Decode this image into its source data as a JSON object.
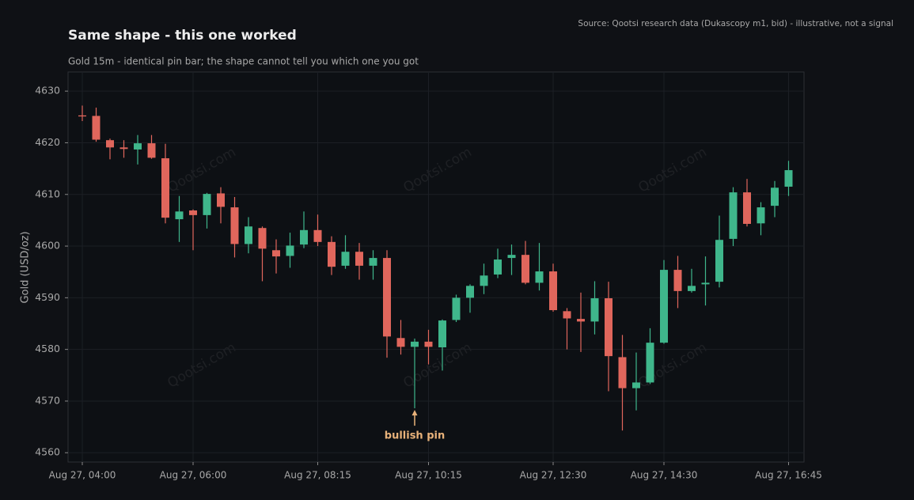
{
  "chart_data": {
    "type": "candlestick",
    "title": "Same shape - this one worked",
    "subtitle": "Gold 15m - identical pin bar; the shape cannot tell you which one you got",
    "source": "Source: Qootsi research data (Dukascopy m1, bid) - illustrative, not a signal",
    "watermark": "Qootsi.com",
    "y_label": "Gold (USD/oz)",
    "up_color": "#3fb68b",
    "down_color": "#e0665c",
    "grid": true,
    "x": [
      "Aug 27, 04:00",
      "Aug 27, 04:15",
      "Aug 27, 04:30",
      "Aug 27, 04:45",
      "Aug 27, 05:00",
      "Aug 27, 05:15",
      "Aug 27, 05:30",
      "Aug 27, 05:45",
      "Aug 27, 06:00",
      "Aug 27, 06:15",
      "Aug 27, 06:30",
      "Aug 27, 06:45",
      "Aug 27, 07:00",
      "Aug 27, 07:15",
      "Aug 27, 07:30",
      "Aug 27, 07:45",
      "Aug 27, 08:00",
      "Aug 27, 08:15",
      "Aug 27, 08:30",
      "Aug 27, 08:45",
      "Aug 27, 09:00",
      "Aug 27, 09:15",
      "Aug 27, 09:30",
      "Aug 27, 09:45",
      "Aug 27, 10:00",
      "Aug 27, 10:15",
      "Aug 27, 10:30",
      "Aug 27, 10:45",
      "Aug 27, 11:00",
      "Aug 27, 11:15",
      "Aug 27, 11:30",
      "Aug 27, 11:45",
      "Aug 27, 12:00",
      "Aug 27, 12:15",
      "Aug 27, 12:30",
      "Aug 27, 12:45",
      "Aug 27, 13:00",
      "Aug 27, 13:15",
      "Aug 27, 13:30",
      "Aug 27, 13:45",
      "Aug 27, 14:00",
      "Aug 27, 14:15",
      "Aug 27, 14:30",
      "Aug 27, 14:45",
      "Aug 27, 15:00",
      "Aug 27, 15:15",
      "Aug 27, 15:30",
      "Aug 27, 15:45",
      "Aug 27, 16:00",
      "Aug 27, 16:15",
      "Aug 27, 16:30",
      "Aug 27, 16:45"
    ],
    "open": [
      4625.3,
      4625.2,
      4620.5,
      4619.1,
      4618.7,
      4619.9,
      4617.0,
      4605.2,
      4606.9,
      4606.0,
      4610.2,
      4607.5,
      4600.4,
      4603.5,
      4599.2,
      4598.1,
      4600.3,
      4603.1,
      4600.8,
      4596.2,
      4598.9,
      4596.2,
      4597.7,
      4582.2,
      4580.5,
      4581.5,
      4580.4,
      4585.7,
      4590.0,
      4592.3,
      4594.5,
      4597.7,
      4598.3,
      4592.9,
      4595.1,
      4587.4,
      4585.9,
      4585.4,
      4589.9,
      4578.5,
      4572.5,
      4573.6,
      4581.3,
      4595.4,
      4591.3,
      4592.6,
      4593.1,
      4601.4,
      4610.4,
      4604.4,
      4607.8,
      4611.5
    ],
    "high": [
      4627.2,
      4626.8,
      4620.8,
      4620.5,
      4621.5,
      4621.5,
      4619.8,
      4609.7,
      4607.1,
      4610.3,
      4611.4,
      4609.5,
      4605.6,
      4603.8,
      4601.3,
      4602.6,
      4606.7,
      4606.1,
      4601.9,
      4602.1,
      4600.6,
      4599.2,
      4599.2,
      4585.7,
      4582.1,
      4583.8,
      4585.8,
      4590.6,
      4592.6,
      4596.6,
      4599.5,
      4600.3,
      4601.0,
      4600.6,
      4596.6,
      4588.0,
      4591.0,
      4593.2,
      4593.1,
      4582.8,
      4579.4,
      4584.1,
      4597.3,
      4598.1,
      4595.6,
      4598.0,
      4605.9,
      4611.4,
      4613.0,
      4608.5,
      4612.6,
      4616.5
    ],
    "low": [
      4624.2,
      4620.2,
      4616.8,
      4617.1,
      4615.8,
      4616.9,
      4604.4,
      4600.8,
      4599.2,
      4603.4,
      4604.4,
      4597.8,
      4598.6,
      4593.2,
      4594.7,
      4595.8,
      4599.6,
      4600.0,
      4594.4,
      4595.6,
      4593.5,
      4593.5,
      4578.4,
      4579.0,
      4568.6,
      4577.1,
      4575.9,
      4585.3,
      4587.1,
      4590.7,
      4593.8,
      4594.4,
      4592.6,
      4591.4,
      4587.3,
      4580.0,
      4579.5,
      4582.9,
      4571.9,
      4564.3,
      4568.2,
      4573.3,
      4581.1,
      4588.0,
      4591.0,
      4588.5,
      4592.0,
      4600.0,
      4603.8,
      4602.1,
      4605.6,
      4609.7
    ],
    "close": [
      4625.1,
      4620.6,
      4619.1,
      4618.8,
      4619.9,
      4617.1,
      4605.5,
      4606.7,
      4606.0,
      4610.1,
      4607.6,
      4600.4,
      4603.8,
      4599.5,
      4598.0,
      4600.1,
      4603.1,
      4600.8,
      4596.0,
      4598.9,
      4596.2,
      4597.7,
      4582.5,
      4580.5,
      4581.5,
      4580.5,
      4585.6,
      4590.0,
      4592.3,
      4594.3,
      4597.4,
      4598.3,
      4592.9,
      4595.1,
      4587.6,
      4586.0,
      4585.4,
      4589.9,
      4578.7,
      4572.5,
      4573.6,
      4581.3,
      4595.4,
      4591.3,
      4592.3,
      4592.9,
      4601.2,
      4610.4,
      4604.3,
      4607.5,
      4611.3,
      4614.7
    ],
    "annotation": {
      "text": "bullish pin",
      "at": "Aug 27, 10:00"
    },
    "ylim": [
      4558.2,
      4633.7
    ],
    "yticks": [
      4560,
      4570,
      4580,
      4590,
      4600,
      4610,
      4620,
      4630
    ],
    "xticks": [
      "Aug 27, 04:00",
      "Aug 27, 06:00",
      "Aug 27, 08:15",
      "Aug 27, 10:15",
      "Aug 27, 12:30",
      "Aug 27, 14:30",
      "Aug 27, 16:45"
    ]
  }
}
